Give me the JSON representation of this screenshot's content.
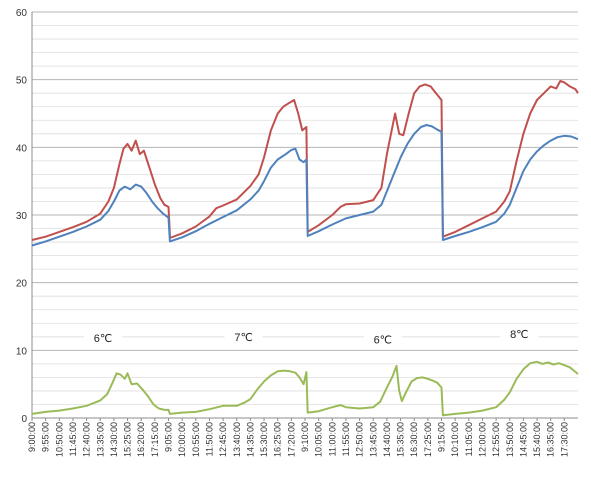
{
  "chart_data": {
    "type": "line",
    "title": "",
    "xlabel": "",
    "ylabel": "",
    "ylim": [
      0,
      60
    ],
    "yticks": [
      0,
      10,
      20,
      30,
      40,
      50,
      60
    ],
    "grid": true,
    "legend": "none",
    "x_tick_labels": [
      "9:00:00",
      "9:55:00",
      "10:50:00",
      "11:45:00",
      "12:40:00",
      "13:35:00",
      "14:30:00",
      "15:25:00",
      "16:20:00",
      "17:15:00",
      "9:05:00",
      "10:00:00",
      "10:55:00",
      "11:50:00",
      "12:45:00",
      "13:40:00",
      "14:35:00",
      "15:30:00",
      "16:25:00",
      "17:20:00",
      "9:10:00",
      "10:05:00",
      "11:00:00",
      "11:55:00",
      "12:50:00",
      "13:45:00",
      "14:40:00",
      "15:35:00",
      "16:30:00",
      "17:25:00",
      "9:15:00",
      "10:10:00",
      "11:05:00",
      "12:00:00",
      "12:55:00",
      "13:50:00",
      "14:45:00",
      "15:40:00",
      "16:35:00",
      "17:30:00"
    ],
    "annotations": [
      {
        "text": "6℃",
        "x": 5.2,
        "y": 11.8
      },
      {
        "text": "7℃",
        "x": 15.5,
        "y": 12.0
      },
      {
        "text": "6℃",
        "x": 25.7,
        "y": 11.6
      },
      {
        "text": "8℃",
        "x": 35.7,
        "y": 12.4
      }
    ],
    "series": [
      {
        "color": "#c0504d",
        "points": [
          [
            0,
            26.3
          ],
          [
            1,
            26.8
          ],
          [
            2,
            27.5
          ],
          [
            3,
            28.2
          ],
          [
            4,
            29.0
          ],
          [
            5,
            30.2
          ],
          [
            5.6,
            32.0
          ],
          [
            6.0,
            34.0
          ],
          [
            6.4,
            37.5
          ],
          [
            6.7,
            39.8
          ],
          [
            7.0,
            40.5
          ],
          [
            7.3,
            39.5
          ],
          [
            7.6,
            41.0
          ],
          [
            7.9,
            39.0
          ],
          [
            8.2,
            39.5
          ],
          [
            8.6,
            37.0
          ],
          [
            9.0,
            34.5
          ],
          [
            9.4,
            32.5
          ],
          [
            9.7,
            31.5
          ],
          [
            10.0,
            31.2
          ],
          [
            10.1,
            27.0
          ],
          [
            10.1,
            26.6
          ],
          [
            11,
            27.3
          ],
          [
            12,
            28.3
          ],
          [
            13,
            29.8
          ],
          [
            13.5,
            31.0
          ],
          [
            14,
            31.4
          ],
          [
            15,
            32.3
          ],
          [
            16,
            34.3
          ],
          [
            16.6,
            36.0
          ],
          [
            17,
            38.5
          ],
          [
            17.5,
            42.5
          ],
          [
            18,
            45.0
          ],
          [
            18.4,
            46.0
          ],
          [
            18.8,
            46.5
          ],
          [
            19.2,
            47.0
          ],
          [
            19.5,
            45.0
          ],
          [
            19.8,
            42.5
          ],
          [
            20.1,
            43.0
          ],
          [
            20.2,
            27.5
          ],
          [
            20.2,
            27.5
          ],
          [
            21,
            28.5
          ],
          [
            22,
            30.0
          ],
          [
            22.6,
            31.2
          ],
          [
            23,
            31.6
          ],
          [
            24,
            31.7
          ],
          [
            25,
            32.2
          ],
          [
            25.6,
            34.0
          ],
          [
            26,
            39.0
          ],
          [
            26.3,
            42.0
          ],
          [
            26.6,
            45.0
          ],
          [
            26.9,
            42.0
          ],
          [
            27.2,
            41.8
          ],
          [
            27.6,
            45.0
          ],
          [
            28,
            48.0
          ],
          [
            28.4,
            49.0
          ],
          [
            28.8,
            49.3
          ],
          [
            29.2,
            49.0
          ],
          [
            29.6,
            48.0
          ],
          [
            30.0,
            47.0
          ],
          [
            30.1,
            27.0
          ],
          [
            30.1,
            26.8
          ],
          [
            31,
            27.5
          ],
          [
            32,
            28.5
          ],
          [
            33,
            29.5
          ],
          [
            34,
            30.5
          ],
          [
            34.6,
            32.0
          ],
          [
            35,
            33.5
          ],
          [
            35.5,
            38.0
          ],
          [
            36,
            42.0
          ],
          [
            36.5,
            45.0
          ],
          [
            37,
            47.0
          ],
          [
            37.5,
            48.0
          ],
          [
            38,
            49.0
          ],
          [
            38.4,
            48.7
          ],
          [
            38.7,
            49.8
          ],
          [
            39.0,
            49.6
          ],
          [
            39.4,
            49.0
          ],
          [
            39.8,
            48.6
          ],
          [
            40,
            48.0
          ]
        ]
      },
      {
        "color": "#4f81bd",
        "points": [
          [
            0,
            25.5
          ],
          [
            1,
            26.1
          ],
          [
            2,
            26.8
          ],
          [
            3,
            27.5
          ],
          [
            4,
            28.3
          ],
          [
            5,
            29.3
          ],
          [
            5.6,
            30.6
          ],
          [
            6.0,
            32.0
          ],
          [
            6.4,
            33.6
          ],
          [
            6.8,
            34.2
          ],
          [
            7.2,
            33.8
          ],
          [
            7.6,
            34.5
          ],
          [
            8.0,
            34.2
          ],
          [
            8.4,
            33.2
          ],
          [
            8.8,
            32.0
          ],
          [
            9.2,
            31.0
          ],
          [
            9.6,
            30.2
          ],
          [
            10.0,
            29.6
          ],
          [
            10.1,
            26.1
          ],
          [
            10.1,
            26.1
          ],
          [
            11,
            26.7
          ],
          [
            12,
            27.6
          ],
          [
            13,
            28.7
          ],
          [
            14,
            29.7
          ],
          [
            15,
            30.7
          ],
          [
            16,
            32.3
          ],
          [
            16.6,
            33.6
          ],
          [
            17,
            35.0
          ],
          [
            17.5,
            37.0
          ],
          [
            18,
            38.2
          ],
          [
            18.6,
            39.0
          ],
          [
            19.0,
            39.6
          ],
          [
            19.3,
            39.8
          ],
          [
            19.6,
            38.2
          ],
          [
            19.9,
            37.8
          ],
          [
            20.1,
            38.2
          ],
          [
            20.2,
            27.0
          ],
          [
            20.2,
            26.9
          ],
          [
            21,
            27.6
          ],
          [
            22,
            28.6
          ],
          [
            23,
            29.5
          ],
          [
            24,
            30.0
          ],
          [
            25,
            30.5
          ],
          [
            25.6,
            31.5
          ],
          [
            26,
            33.5
          ],
          [
            26.5,
            36.0
          ],
          [
            27,
            38.5
          ],
          [
            27.5,
            40.5
          ],
          [
            28,
            42.0
          ],
          [
            28.5,
            43.0
          ],
          [
            28.9,
            43.3
          ],
          [
            29.3,
            43.1
          ],
          [
            29.7,
            42.6
          ],
          [
            30.0,
            42.3
          ],
          [
            30.1,
            26.6
          ],
          [
            30.1,
            26.3
          ],
          [
            31,
            26.9
          ],
          [
            32,
            27.5
          ],
          [
            33,
            28.2
          ],
          [
            34,
            29.0
          ],
          [
            34.6,
            30.2
          ],
          [
            35,
            31.5
          ],
          [
            35.5,
            34.0
          ],
          [
            36,
            36.5
          ],
          [
            36.5,
            38.2
          ],
          [
            37,
            39.4
          ],
          [
            37.5,
            40.3
          ],
          [
            38,
            41.0
          ],
          [
            38.5,
            41.5
          ],
          [
            39,
            41.7
          ],
          [
            39.5,
            41.6
          ],
          [
            40,
            41.2
          ]
        ]
      },
      {
        "color": "#9bbb59",
        "points": [
          [
            0,
            0.6
          ],
          [
            1,
            0.9
          ],
          [
            2,
            1.1
          ],
          [
            3,
            1.4
          ],
          [
            4,
            1.8
          ],
          [
            5,
            2.6
          ],
          [
            5.5,
            3.5
          ],
          [
            5.9,
            5.2
          ],
          [
            6.2,
            6.6
          ],
          [
            6.5,
            6.4
          ],
          [
            6.8,
            5.8
          ],
          [
            7.0,
            6.6
          ],
          [
            7.3,
            5.0
          ],
          [
            7.7,
            5.1
          ],
          [
            8.1,
            4.2
          ],
          [
            8.5,
            3.2
          ],
          [
            8.9,
            2.0
          ],
          [
            9.3,
            1.4
          ],
          [
            9.7,
            1.2
          ],
          [
            10.0,
            1.2
          ],
          [
            10.1,
            0.6
          ],
          [
            10.1,
            0.6
          ],
          [
            11,
            0.8
          ],
          [
            12,
            0.9
          ],
          [
            13,
            1.3
          ],
          [
            14,
            1.8
          ],
          [
            15,
            1.8
          ],
          [
            15.6,
            2.3
          ],
          [
            16,
            2.8
          ],
          [
            16.5,
            4.2
          ],
          [
            17,
            5.4
          ],
          [
            17.5,
            6.3
          ],
          [
            18,
            6.9
          ],
          [
            18.5,
            7.0
          ],
          [
            18.9,
            6.9
          ],
          [
            19.3,
            6.7
          ],
          [
            19.6,
            6.0
          ],
          [
            19.9,
            5.0
          ],
          [
            20.1,
            6.8
          ],
          [
            20.2,
            0.8
          ],
          [
            20.2,
            0.8
          ],
          [
            21,
            1.0
          ],
          [
            22,
            1.6
          ],
          [
            22.6,
            1.9
          ],
          [
            23,
            1.6
          ],
          [
            24,
            1.4
          ],
          [
            25,
            1.6
          ],
          [
            25.5,
            2.4
          ],
          [
            26,
            4.5
          ],
          [
            26.4,
            6.1
          ],
          [
            26.7,
            7.7
          ],
          [
            26.9,
            4.0
          ],
          [
            27.1,
            2.5
          ],
          [
            27.4,
            3.8
          ],
          [
            27.8,
            5.4
          ],
          [
            28.2,
            5.9
          ],
          [
            28.6,
            6.0
          ],
          [
            29,
            5.8
          ],
          [
            29.4,
            5.5
          ],
          [
            29.7,
            5.2
          ],
          [
            30.0,
            4.5
          ],
          [
            30.1,
            0.4
          ],
          [
            30.1,
            0.4
          ],
          [
            31,
            0.6
          ],
          [
            32,
            0.8
          ],
          [
            33,
            1.1
          ],
          [
            34,
            1.6
          ],
          [
            34.6,
            2.7
          ],
          [
            35,
            3.8
          ],
          [
            35.5,
            5.8
          ],
          [
            36,
            7.2
          ],
          [
            36.5,
            8.1
          ],
          [
            37,
            8.3
          ],
          [
            37.4,
            8.0
          ],
          [
            37.8,
            8.2
          ],
          [
            38.2,
            7.9
          ],
          [
            38.6,
            8.1
          ],
          [
            39.0,
            7.8
          ],
          [
            39.4,
            7.5
          ],
          [
            39.7,
            7.0
          ],
          [
            40,
            6.5
          ]
        ]
      }
    ]
  }
}
